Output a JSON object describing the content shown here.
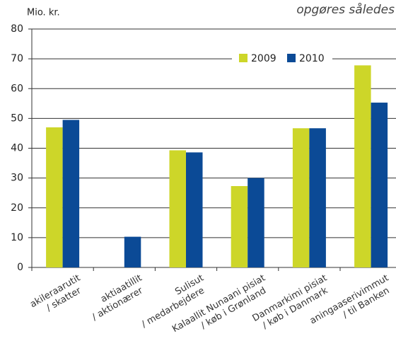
{
  "chart_data": {
    "type": "bar",
    "annotation": "opgøres således",
    "y_label": "Mio. kr.",
    "categories": [
      [
        "akileraarutit",
        "/ skatter"
      ],
      [
        "aktiaatillit",
        "/ aktionærer"
      ],
      [
        "Sulisut",
        "/ medarbejdere"
      ],
      [
        "Kalaallit Nunaani pisiat",
        "/ køb i Grønland"
      ],
      [
        "Danmarkimi pisiat",
        "/ køb i Danmark"
      ],
      [
        "aningaaserivimmut",
        "/ til Banken"
      ]
    ],
    "series": [
      {
        "name": "2009",
        "color": "#cdd629",
        "values": [
          47,
          null,
          39.3,
          27.3,
          46.7,
          67.8
        ]
      },
      {
        "name": "2010",
        "color": "#0b4a96",
        "values": [
          49.5,
          10.3,
          38.6,
          30,
          46.7,
          55.3
        ]
      }
    ],
    "ylim": [
      0,
      80
    ],
    "yticks": [
      0,
      10,
      20,
      30,
      40,
      50,
      60,
      70,
      80
    ],
    "grid": true,
    "legend": "top-right"
  }
}
